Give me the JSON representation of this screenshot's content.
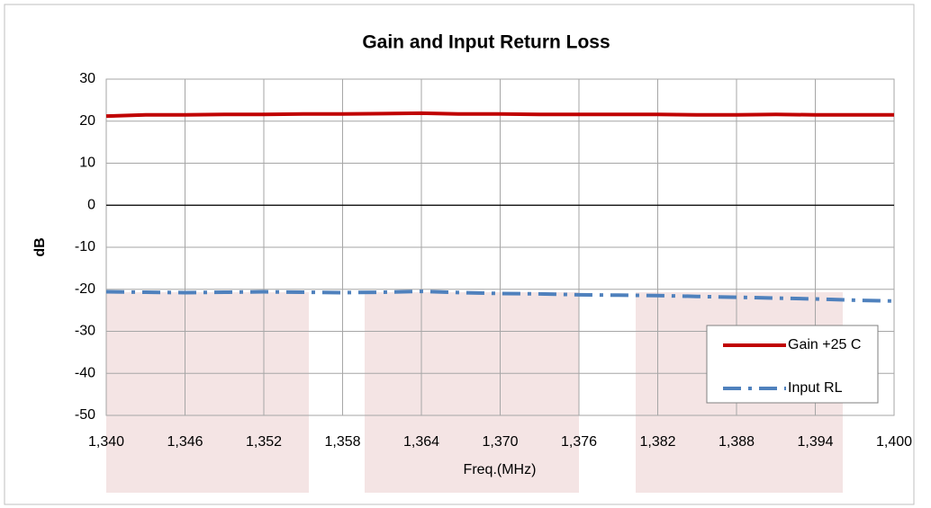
{
  "chart_data": {
    "type": "line",
    "title": "Gain and Input Return Loss",
    "xlabel": "Freq.(MHz)",
    "ylabel": "dB",
    "x": [
      1340,
      1343,
      1346,
      1349,
      1352,
      1355,
      1358,
      1361,
      1364,
      1367,
      1370,
      1373,
      1376,
      1379,
      1382,
      1385,
      1388,
      1391,
      1394,
      1397,
      1400
    ],
    "series": [
      {
        "name": "Gain +25 C",
        "color": "#c00000",
        "style": "solid",
        "values": [
          21.2,
          21.5,
          21.5,
          21.6,
          21.6,
          21.7,
          21.7,
          21.8,
          21.9,
          21.7,
          21.7,
          21.6,
          21.6,
          21.6,
          21.6,
          21.5,
          21.5,
          21.6,
          21.5,
          21.5,
          21.5
        ]
      },
      {
        "name": "Input RL",
        "color": "#4f81bd",
        "style": "dashdot",
        "values": [
          -20.6,
          -20.7,
          -20.8,
          -20.7,
          -20.6,
          -20.7,
          -20.8,
          -20.7,
          -20.5,
          -20.8,
          -21.0,
          -21.1,
          -21.3,
          -21.4,
          -21.5,
          -21.7,
          -21.9,
          -22.1,
          -22.3,
          -22.6,
          -22.8
        ]
      }
    ],
    "xlim": [
      1340,
      1400
    ],
    "xticks": [
      {
        "value": 1340,
        "label": "1,340"
      },
      {
        "value": 1346,
        "label": "1,346"
      },
      {
        "value": 1352,
        "label": "1,352"
      },
      {
        "value": 1358,
        "label": "1,358"
      },
      {
        "value": 1364,
        "label": "1,364"
      },
      {
        "value": 1370,
        "label": "1,370"
      },
      {
        "value": 1376,
        "label": "1,376"
      },
      {
        "value": 1382,
        "label": "1,382"
      },
      {
        "value": 1388,
        "label": "1,388"
      },
      {
        "value": 1394,
        "label": "1,394"
      },
      {
        "value": 1400,
        "label": "1,400"
      }
    ],
    "ylim": [
      -50,
      30
    ],
    "yticks": [
      -50,
      -40,
      -30,
      -20,
      -10,
      0,
      10,
      20,
      30
    ],
    "grid": true,
    "legend": "right"
  }
}
